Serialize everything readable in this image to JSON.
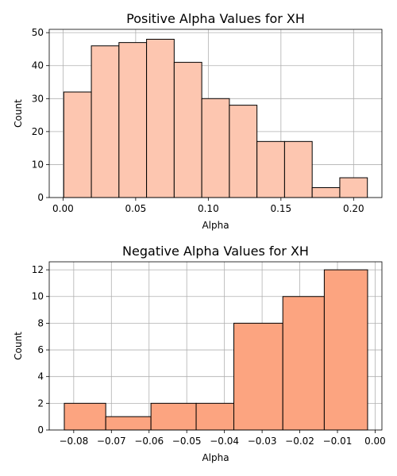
{
  "chart_data": [
    {
      "type": "bar",
      "title": "Positive Alpha Values for XH",
      "xlabel": "Alpha",
      "ylabel": "Count",
      "bar_color": "#fdc6b0",
      "edge_color": "#000000",
      "grid": true,
      "xlim": [
        -0.0095,
        0.2195
      ],
      "ylim": [
        0,
        51
      ],
      "xticks": [
        0.0,
        0.05,
        0.1,
        0.15,
        0.2
      ],
      "xtick_labels": [
        "0.00",
        "0.05",
        "0.10",
        "0.15",
        "0.20"
      ],
      "yticks": [
        0,
        10,
        20,
        30,
        40,
        50
      ],
      "ytick_labels": [
        "0",
        "10",
        "20",
        "30",
        "40",
        "50"
      ],
      "bins": [
        {
          "x0": 0.0005,
          "x1": 0.0195,
          "count": 32
        },
        {
          "x0": 0.0195,
          "x1": 0.0385,
          "count": 46
        },
        {
          "x0": 0.0385,
          "x1": 0.0575,
          "count": 47
        },
        {
          "x0": 0.0575,
          "x1": 0.0765,
          "count": 48
        },
        {
          "x0": 0.0765,
          "x1": 0.0955,
          "count": 41
        },
        {
          "x0": 0.0955,
          "x1": 0.1145,
          "count": 30
        },
        {
          "x0": 0.1145,
          "x1": 0.1335,
          "count": 28
        },
        {
          "x0": 0.1335,
          "x1": 0.1525,
          "count": 17
        },
        {
          "x0": 0.1525,
          "x1": 0.1715,
          "count": 17
        },
        {
          "x0": 0.1715,
          "x1": 0.1905,
          "count": 3
        },
        {
          "x0": 0.1905,
          "x1": 0.2095,
          "count": 6
        }
      ]
    },
    {
      "type": "bar",
      "title": "Negative Alpha Values for XH",
      "xlabel": "Alpha",
      "ylabel": "Count",
      "bar_color": "#fca480",
      "edge_color": "#000000",
      "grid": true,
      "xlim": [
        -0.0865,
        0.0018
      ],
      "ylim": [
        0,
        12.6
      ],
      "xticks": [
        -0.08,
        -0.07,
        -0.06,
        -0.05,
        -0.04,
        -0.03,
        -0.02,
        -0.01,
        0.0
      ],
      "xtick_labels": [
        "−0.08",
        "−0.07",
        "−0.06",
        "−0.05",
        "−0.04",
        "−0.03",
        "−0.02",
        "−0.01",
        "0.00"
      ],
      "yticks": [
        0,
        2,
        4,
        6,
        8,
        10,
        12
      ],
      "ytick_labels": [
        "0",
        "2",
        "4",
        "6",
        "8",
        "10",
        "12"
      ],
      "bins": [
        {
          "x0": -0.0825,
          "x1": -0.0715,
          "count": 2
        },
        {
          "x0": -0.0715,
          "x1": -0.0595,
          "count": 1
        },
        {
          "x0": -0.0595,
          "x1": -0.0475,
          "count": 2
        },
        {
          "x0": -0.0475,
          "x1": -0.0375,
          "count": 2
        },
        {
          "x0": -0.0375,
          "x1": -0.0245,
          "count": 8
        },
        {
          "x0": -0.0245,
          "x1": -0.0135,
          "count": 10
        },
        {
          "x0": -0.0135,
          "x1": -0.002,
          "count": 12
        }
      ]
    }
  ]
}
